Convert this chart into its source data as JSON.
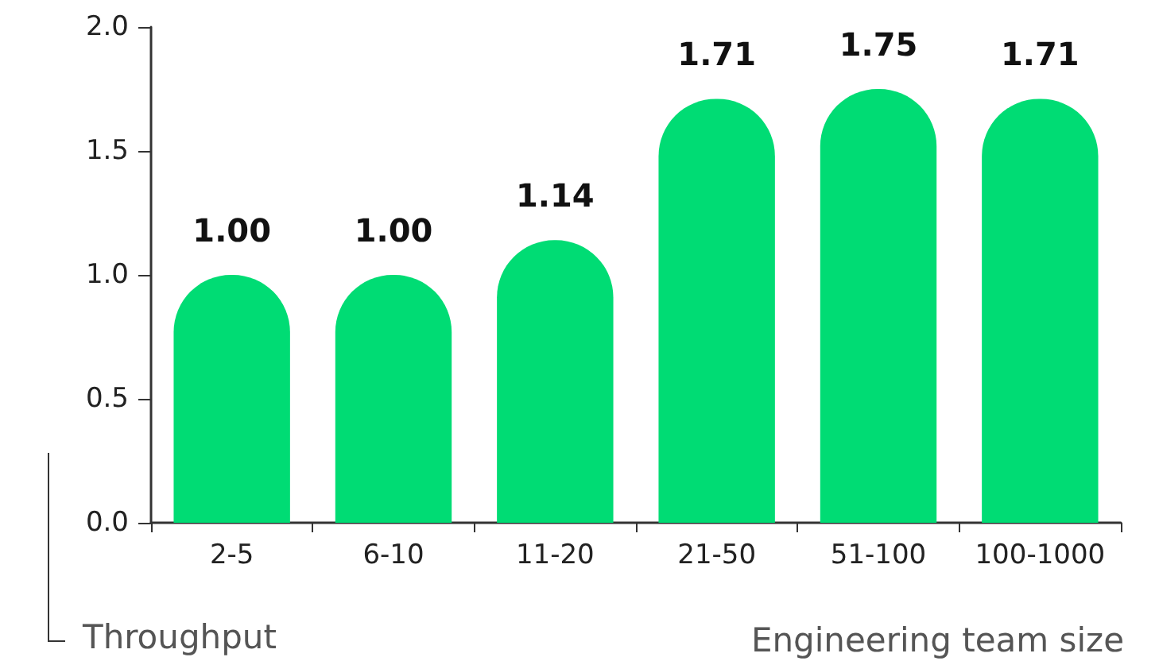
{
  "chart_data": {
    "type": "bar",
    "xlabel": "Engineering team size",
    "ylabel": "Throughput",
    "categories": [
      "2-5",
      "6-10",
      "11-20",
      "21-50",
      "51-100",
      "100-1000"
    ],
    "values": [
      1.0,
      1.0,
      1.14,
      1.71,
      1.75,
      1.71
    ],
    "color": "#00dc74",
    "ylim": [
      0,
      2
    ],
    "yticks": [
      {
        "value": 0,
        "label": "0.0"
      },
      {
        "value": 0.5,
        "label": "0.5"
      },
      {
        "value": 1,
        "label": "1.0"
      },
      {
        "value": 1.5,
        "label": "1.5"
      },
      {
        "value": 2,
        "label": "2.0"
      }
    ],
    "value_labels": [
      "1.00",
      "1.00",
      "1.14",
      "1.71",
      "1.75",
      "1.71"
    ],
    "grid": false
  }
}
